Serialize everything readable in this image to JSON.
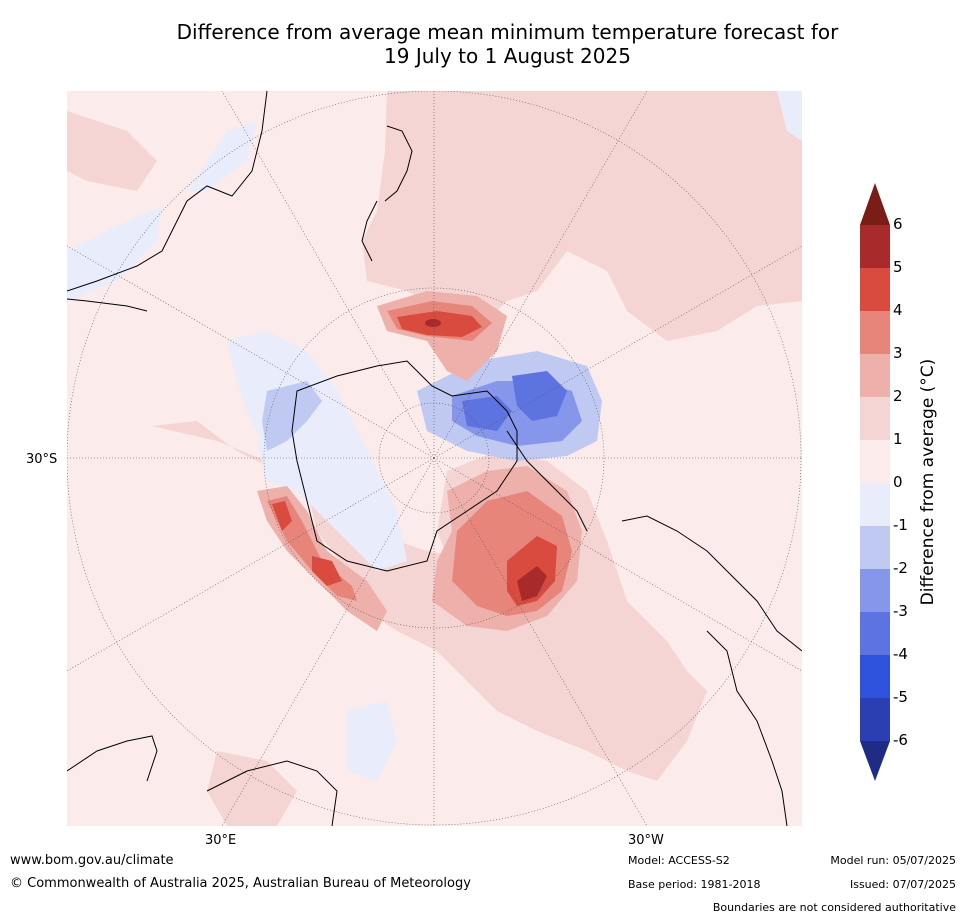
{
  "title": {
    "line1": "Difference from average mean minimum temperature forecast for",
    "line2": "19 July to 1 August 2025"
  },
  "map": {
    "projection": "south polar stereographic",
    "lat_label": "30°S",
    "lon_labels": {
      "east": "30°E",
      "west": "30°W"
    }
  },
  "colorbar": {
    "title": "Difference from average (°C)",
    "ticks": [
      "6",
      "5",
      "4",
      "3",
      "2",
      "1",
      "0",
      "-1",
      "-2",
      "-3",
      "-4",
      "-5",
      "-6"
    ],
    "colors_top_to_bottom": [
      "#a82a2a",
      "#d94a3f",
      "#e8857b",
      "#eeb0aa",
      "#f4d5d3",
      "#fbeceb",
      "#e8ecfb",
      "#c0c9f2",
      "#8696ea",
      "#5c73e0",
      "#2f52dc",
      "#2c3fb2"
    ],
    "over_color": "#7a1d17",
    "under_color": "#1f2c85"
  },
  "footer": {
    "website": "www.bom.gov.au/climate",
    "copyright": "© Commonwealth of Australia 2025, Australian Bureau of Meteorology",
    "model": "Model: ACCESS-S2",
    "base_period": "Base period: 1981-2018",
    "model_run": "Model run: 05/07/2025",
    "issued": "Issued: 07/07/2025",
    "disclaimer": "Boundaries are not considered authoritative"
  }
}
